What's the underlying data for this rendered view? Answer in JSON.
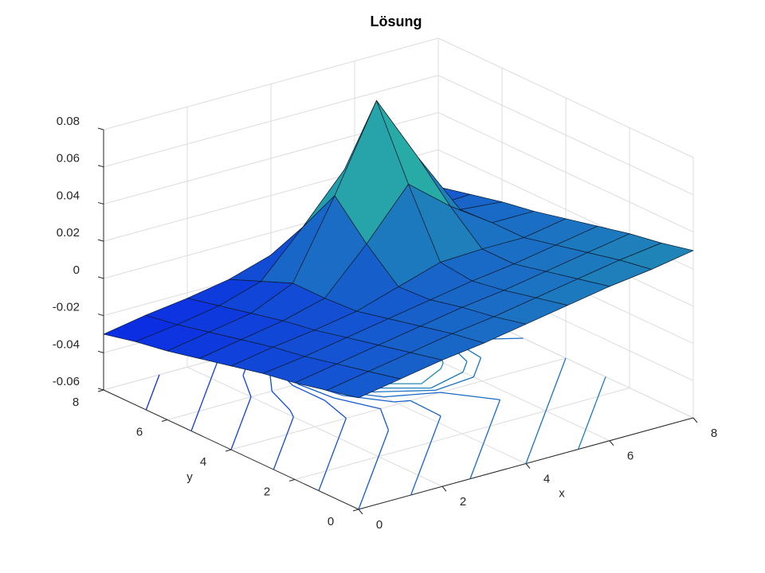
{
  "chart_data": {
    "type": "surface",
    "title": "Lösung",
    "xlabel": "x",
    "ylabel": "y",
    "x": [
      0,
      1,
      2,
      3,
      4,
      5,
      6,
      7,
      8
    ],
    "y": [
      0,
      1,
      2,
      3,
      4,
      5,
      6,
      7,
      8
    ],
    "z": [
      [
        0,
        0.004,
        0.008,
        0.011,
        0.015,
        0.019,
        0.023,
        0.026,
        0.03
      ],
      [
        -0.004,
        0,
        0.004,
        0.008,
        0.011,
        0.015,
        0.019,
        0.023,
        0.026
      ],
      [
        -0.008,
        -0.004,
        0,
        0.004,
        0.008,
        0.011,
        0.015,
        0.019,
        0.023
      ],
      [
        -0.011,
        -0.008,
        -0.004,
        0,
        0.004,
        0.008,
        0.011,
        0.015,
        0.019
      ],
      [
        -0.015,
        -0.011,
        -0.008,
        -0.004,
        0.003,
        0.01,
        0.011,
        0.011,
        0.015
      ],
      [
        -0.019,
        -0.015,
        -0.011,
        -0.005,
        0.018,
        0.044,
        0.026,
        0.011,
        0.011
      ],
      [
        -0.023,
        -0.019,
        -0.015,
        -0.005,
        0.036,
        0.081,
        0.044,
        0.01,
        0.008
      ],
      [
        -0.026,
        -0.023,
        -0.019,
        -0.012,
        0.011,
        0.036,
        0.018,
        0.003,
        0.004
      ],
      [
        -0.03,
        -0.026,
        -0.023,
        -0.019,
        -0.012,
        -0.005,
        -0.005,
        -0.004,
        0
      ]
    ],
    "xlim": [
      0,
      8
    ],
    "ylim": [
      0,
      8
    ],
    "zlim": [
      -0.06,
      0.08
    ],
    "xticks": [
      0,
      2,
      4,
      6,
      8
    ],
    "yticks": [
      0,
      2,
      4,
      6,
      8
    ],
    "zticks": [
      -0.06,
      -0.04,
      -0.02,
      0,
      0.02,
      0.04,
      0.06,
      0.08
    ],
    "contour_levels": [
      -0.025,
      -0.02,
      -0.015,
      -0.01,
      -0.005,
      0,
      0.005,
      0.01,
      0.015,
      0.02,
      0.03,
      0.05,
      0.07
    ],
    "colormap": [
      "#0a28e6",
      "#34e08c"
    ],
    "grid": true
  }
}
